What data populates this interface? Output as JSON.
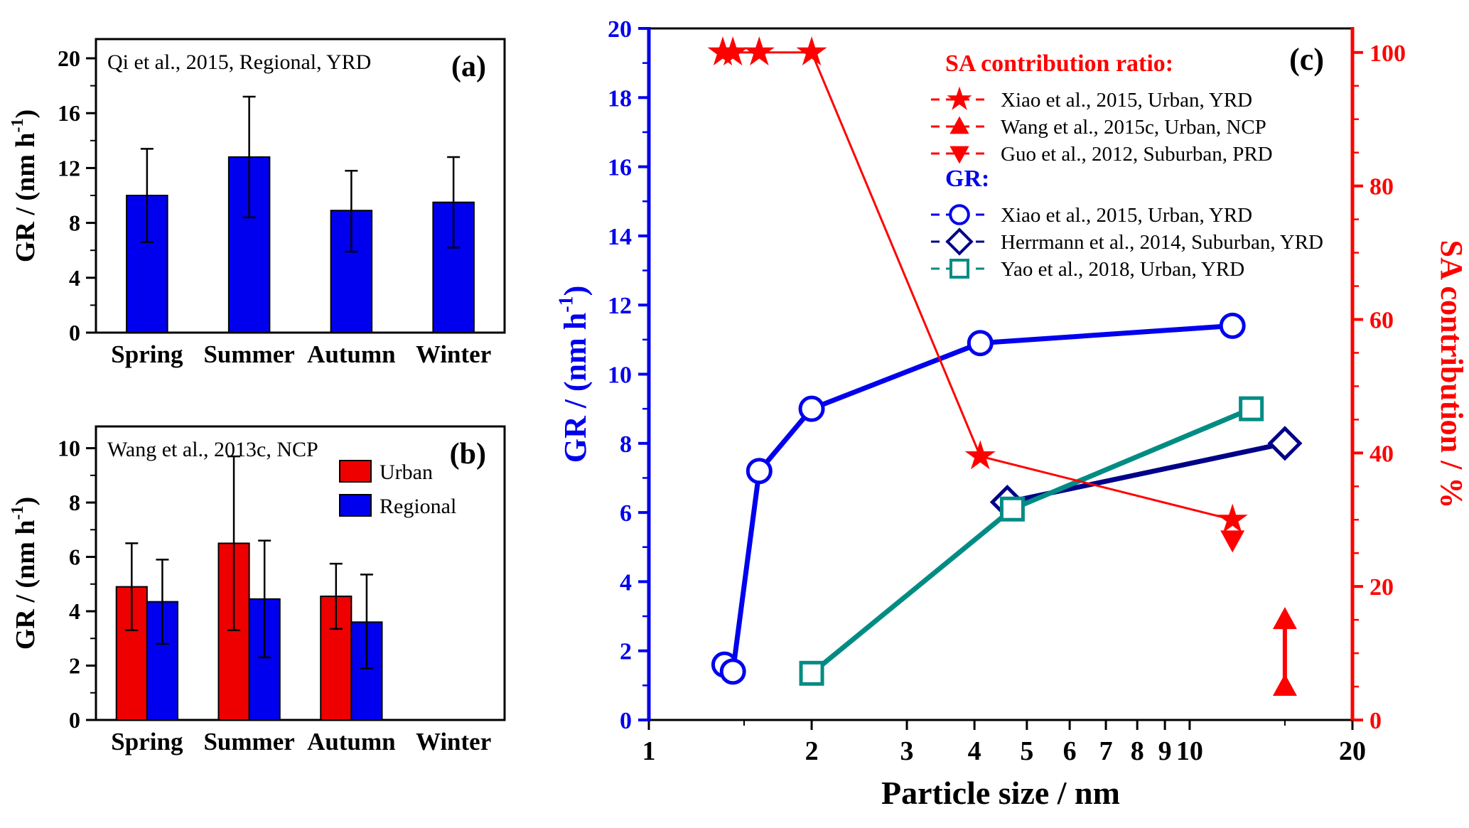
{
  "figure": {
    "background": "#ffffff"
  },
  "chart_data": [
    {
      "id": "panel-a",
      "type": "bar",
      "panel_label": "(a)",
      "annotation": "Qi et al., 2015, Regional, YRD",
      "ylabel": {
        "prefix": "GR  /  (nm h",
        "sup": "-1",
        "suffix": ")"
      },
      "categories": [
        "Spring",
        "Summer",
        "Autumn",
        "Winter"
      ],
      "values": [
        10.0,
        12.8,
        8.9,
        9.5
      ],
      "err_minus": [
        3.4,
        4.4,
        3.0,
        3.3
      ],
      "err_plus": [
        3.4,
        4.4,
        2.9,
        3.3
      ],
      "bar_color": "#0000ee",
      "ylim": [
        0,
        21.4
      ],
      "yticks": [
        0,
        4,
        8,
        12,
        16,
        20
      ],
      "yminor_step": 2
    },
    {
      "id": "panel-b",
      "type": "grouped-bar",
      "panel_label": "(b)",
      "annotation": "Wang et al., 2013c, NCP",
      "ylabel": {
        "prefix": "GR  /  (nm h",
        "sup": "-1",
        "suffix": ")"
      },
      "categories": [
        "Spring",
        "Summer",
        "Autumn",
        "Winter"
      ],
      "series": [
        {
          "name": "Urban",
          "color": "#ee0000",
          "values": [
            4.9,
            6.5,
            4.55,
            null
          ],
          "err_minus": [
            1.6,
            3.2,
            1.2,
            null
          ],
          "err_plus": [
            1.6,
            3.2,
            1.2,
            null
          ]
        },
        {
          "name": "Regional",
          "color": "#0000ee",
          "values": [
            4.35,
            4.45,
            3.6,
            null
          ],
          "err_minus": [
            1.55,
            2.15,
            1.7,
            null
          ],
          "err_plus": [
            1.55,
            2.15,
            1.75,
            null
          ]
        }
      ],
      "ylim": [
        0,
        10.8
      ],
      "yticks": [
        0,
        2,
        4,
        6,
        8,
        10
      ],
      "yminor_step": 1
    },
    {
      "id": "panel-c",
      "type": "line-dual-axis",
      "panel_label": "(c)",
      "xlabel": "Particle size / nm",
      "x_scale": "log",
      "xlim": [
        1,
        20
      ],
      "xticks": [
        1,
        2,
        3,
        4,
        5,
        6,
        7,
        8,
        9,
        10,
        20
      ],
      "xminor": [
        1.5,
        15
      ],
      "left_axis": {
        "label": {
          "prefix": "GR  /  (nm h",
          "sup": "-1",
          "suffix": ")"
        },
        "color": "#0000ee",
        "lim": [
          0,
          20
        ],
        "ticks": [
          0,
          2,
          4,
          6,
          8,
          10,
          12,
          14,
          16,
          18,
          20
        ],
        "minor_step": 1
      },
      "right_axis": {
        "label": "SA contribution / %",
        "color": "#ff0000",
        "lim": [
          0,
          103.6
        ],
        "ticks": [
          0,
          20,
          40,
          60,
          80,
          100
        ],
        "minor_step": 5
      },
      "legend": {
        "groups": [
          {
            "title": "SA contribution ratio:",
            "title_color": "#ff0000",
            "items": [
              {
                "label": "Xiao et al., 2015, Urban, YRD",
                "marker": "star",
                "color": "#ff0000"
              },
              {
                "label": "Wang et al., 2015c, Urban, NCP",
                "marker": "triangle-up",
                "color": "#ff0000"
              },
              {
                "label": "Guo et al., 2012, Suburban, PRD",
                "marker": "triangle-down",
                "color": "#ff0000"
              }
            ]
          },
          {
            "title": "GR:",
            "title_color": "#0000ee",
            "items": [
              {
                "label": "Xiao et al., 2015, Urban, YRD",
                "marker": "circle-open",
                "color": "#0000ee"
              },
              {
                "label": "Herrmann et al., 2014, Suburban, YRD",
                "marker": "diamond-open",
                "color": "#000088"
              },
              {
                "label": "Yao et al., 2018, Urban, YRD",
                "marker": "square-open",
                "color": "#008c84"
              }
            ]
          }
        ]
      },
      "series": [
        {
          "name": "GR - Xiao et al., 2015, Urban, YRD",
          "axis": "left",
          "marker": "circle-open",
          "color": "#0000ee",
          "line_width": 7,
          "points": [
            [
              1.38,
              1.6
            ],
            [
              1.43,
              1.4
            ],
            [
              1.6,
              7.2
            ],
            [
              2.0,
              9.0
            ],
            [
              4.1,
              10.9
            ],
            [
              12,
              11.4
            ]
          ]
        },
        {
          "name": "GR - Herrmann et al., 2014, Suburban, YRD",
          "axis": "left",
          "marker": "diamond-open",
          "color": "#000088",
          "line_width": 7,
          "points": [
            [
              4.6,
              6.3
            ],
            [
              15,
              8.0
            ]
          ]
        },
        {
          "name": "GR - Yao et al., 2018, Urban, YRD",
          "axis": "left",
          "marker": "square-open",
          "color": "#008c84",
          "line_width": 7,
          "points": [
            [
              2.0,
              1.35
            ],
            [
              4.7,
              6.1
            ],
            [
              13,
              9.0
            ]
          ]
        },
        {
          "name": "SA ratio - Xiao et al., 2015, Urban, YRD",
          "axis": "right",
          "marker": "star",
          "color": "#ff0000",
          "line_width": 3,
          "points": [
            [
              1.37,
              100
            ],
            [
              1.43,
              100
            ],
            [
              1.6,
              100
            ],
            [
              2.0,
              100
            ],
            [
              4.1,
              39.5
            ],
            [
              12,
              30
            ]
          ]
        },
        {
          "name": "SA ratio - Guo et al., 2012, Suburban, PRD",
          "axis": "right",
          "marker": "triangle-down",
          "color": "#ff0000",
          "line_width": 0,
          "points": [
            [
              12,
              27
            ]
          ]
        },
        {
          "name": "SA ratio - Wang et al., 2015c, Urban, NCP",
          "axis": "right",
          "marker": "triangle-up",
          "color": "#ff0000",
          "line_width": 6,
          "points": [
            [
              15,
              15
            ],
            [
              15,
              5
            ]
          ]
        }
      ]
    }
  ]
}
